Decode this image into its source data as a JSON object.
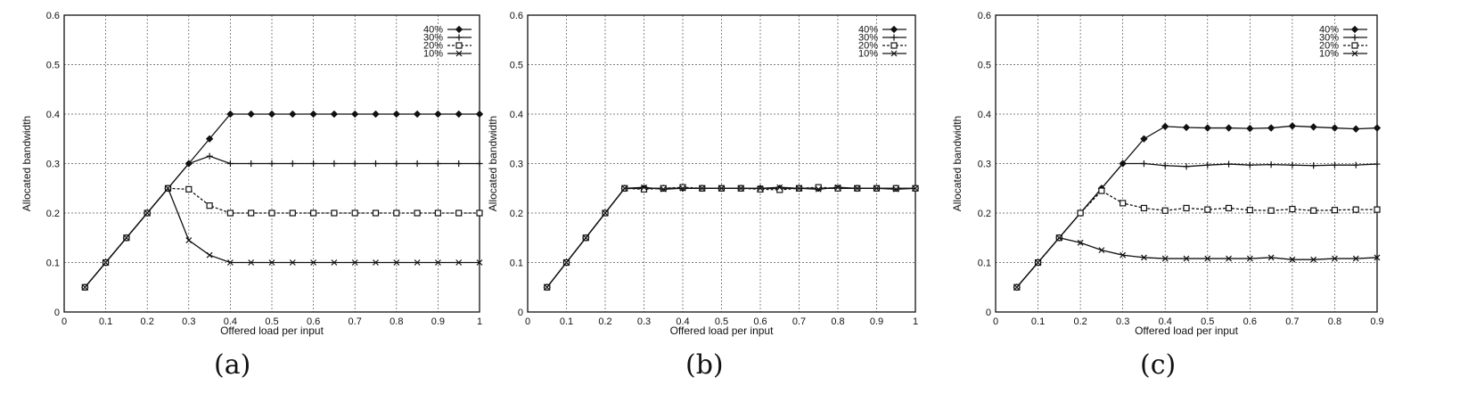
{
  "chart_data": [
    {
      "type": "line",
      "panel_label": "(a)",
      "xlabel": "Offered load per input",
      "ylabel": "Allocated bandwidth",
      "xlim": [
        0,
        1
      ],
      "ylim": [
        0,
        0.6
      ],
      "xticks": [
        "0",
        "0.1",
        "0.2",
        "0.3",
        "0.4",
        "0.5",
        "0.6",
        "0.7",
        "0.8",
        "0.9",
        "1"
      ],
      "yticks": [
        "0",
        "0.1",
        "0.2",
        "0.3",
        "0.4",
        "0.5",
        "0.6"
      ],
      "grid": true,
      "legend_position": "top-right",
      "x": [
        0.05,
        0.1,
        0.15,
        0.2,
        0.25,
        0.3,
        0.35,
        0.4,
        0.45,
        0.5,
        0.55,
        0.6,
        0.65,
        0.7,
        0.75,
        0.8,
        0.85,
        0.9,
        0.95,
        1.0
      ],
      "series": [
        {
          "name": "40%",
          "marker": "diamond",
          "dash": "solid",
          "values": [
            0.05,
            0.1,
            0.15,
            0.2,
            0.25,
            0.3,
            0.35,
            0.4,
            0.4,
            0.4,
            0.4,
            0.4,
            0.4,
            0.4,
            0.4,
            0.4,
            0.4,
            0.4,
            0.4,
            0.4
          ]
        },
        {
          "name": "30%",
          "marker": "plus",
          "dash": "solid",
          "values": [
            0.05,
            0.1,
            0.15,
            0.2,
            0.25,
            0.3,
            0.315,
            0.3,
            0.3,
            0.3,
            0.3,
            0.3,
            0.3,
            0.3,
            0.3,
            0.3,
            0.3,
            0.3,
            0.3,
            0.3
          ]
        },
        {
          "name": "20%",
          "marker": "square",
          "dash": "dashed",
          "values": [
            0.05,
            0.1,
            0.15,
            0.2,
            0.25,
            0.248,
            0.215,
            0.2,
            0.2,
            0.2,
            0.2,
            0.2,
            0.2,
            0.2,
            0.2,
            0.2,
            0.2,
            0.2,
            0.2,
            0.2
          ]
        },
        {
          "name": "10%",
          "marker": "x",
          "dash": "solid",
          "values": [
            0.05,
            0.1,
            0.15,
            0.2,
            0.25,
            0.145,
            0.115,
            0.1,
            0.1,
            0.1,
            0.1,
            0.1,
            0.1,
            0.1,
            0.1,
            0.1,
            0.1,
            0.1,
            0.1,
            0.1
          ]
        }
      ]
    },
    {
      "type": "line",
      "panel_label": "(b)",
      "xlabel": "Offered load per input",
      "ylabel": "Allocated bandwidth",
      "xlim": [
        0,
        1
      ],
      "ylim": [
        0,
        0.6
      ],
      "xticks": [
        "0",
        "0.1",
        "0.2",
        "0.3",
        "0.4",
        "0.5",
        "0.6",
        "0.7",
        "0.8",
        "0.9",
        "1"
      ],
      "yticks": [
        "0",
        "0.1",
        "0.2",
        "0.3",
        "0.4",
        "0.5",
        "0.6"
      ],
      "grid": true,
      "legend_position": "top-right",
      "x": [
        0.05,
        0.1,
        0.15,
        0.2,
        0.25,
        0.3,
        0.35,
        0.4,
        0.45,
        0.5,
        0.55,
        0.6,
        0.65,
        0.7,
        0.75,
        0.8,
        0.85,
        0.9,
        0.95,
        1.0
      ],
      "series": [
        {
          "name": "40%",
          "marker": "diamond",
          "dash": "solid",
          "values": [
            0.05,
            0.1,
            0.15,
            0.2,
            0.25,
            0.25,
            0.25,
            0.25,
            0.25,
            0.25,
            0.25,
            0.25,
            0.25,
            0.25,
            0.25,
            0.25,
            0.25,
            0.25,
            0.25,
            0.25
          ]
        },
        {
          "name": "30%",
          "marker": "plus",
          "dash": "solid",
          "values": [
            0.05,
            0.1,
            0.15,
            0.2,
            0.25,
            0.25,
            0.25,
            0.25,
            0.25,
            0.25,
            0.25,
            0.25,
            0.25,
            0.25,
            0.25,
            0.25,
            0.25,
            0.25,
            0.25,
            0.25
          ]
        },
        {
          "name": "20%",
          "marker": "square",
          "dash": "dashed",
          "values": [
            0.05,
            0.1,
            0.15,
            0.2,
            0.25,
            0.248,
            0.25,
            0.252,
            0.25,
            0.25,
            0.25,
            0.248,
            0.247,
            0.25,
            0.252,
            0.25,
            0.25,
            0.25,
            0.25,
            0.25
          ]
        },
        {
          "name": "10%",
          "marker": "x",
          "dash": "solid",
          "values": [
            0.05,
            0.1,
            0.15,
            0.2,
            0.25,
            0.252,
            0.248,
            0.25,
            0.25,
            0.25,
            0.25,
            0.25,
            0.252,
            0.25,
            0.248,
            0.252,
            0.25,
            0.25,
            0.248,
            0.25
          ]
        }
      ]
    },
    {
      "type": "line",
      "panel_label": "(c)",
      "xlabel": "Offered load per input",
      "ylabel": "Allocated bandwidth",
      "xlim": [
        0,
        0.9
      ],
      "ylim": [
        0,
        0.6
      ],
      "xticks": [
        "0",
        "0.1",
        "0.2",
        "0.3",
        "0.4",
        "0.5",
        "0.6",
        "0.7",
        "0.8",
        "0.9"
      ],
      "yticks": [
        "0",
        "0.1",
        "0.2",
        "0.3",
        "0.4",
        "0.5",
        "0.6"
      ],
      "grid": true,
      "legend_position": "top-right",
      "x": [
        0.05,
        0.1,
        0.15,
        0.2,
        0.25,
        0.3,
        0.35,
        0.4,
        0.45,
        0.5,
        0.55,
        0.6,
        0.65,
        0.7,
        0.75,
        0.8,
        0.85,
        0.9
      ],
      "series": [
        {
          "name": "40%",
          "marker": "diamond",
          "dash": "solid",
          "values": [
            0.05,
            0.1,
            0.15,
            0.2,
            0.25,
            0.3,
            0.35,
            0.375,
            0.373,
            0.372,
            0.372,
            0.371,
            0.372,
            0.376,
            0.374,
            0.372,
            0.37,
            0.372
          ]
        },
        {
          "name": "30%",
          "marker": "plus",
          "dash": "solid",
          "values": [
            0.05,
            0.1,
            0.15,
            0.2,
            0.25,
            0.3,
            0.3,
            0.296,
            0.294,
            0.297,
            0.299,
            0.297,
            0.298,
            0.297,
            0.296,
            0.297,
            0.297,
            0.299
          ]
        },
        {
          "name": "20%",
          "marker": "square",
          "dash": "dashed",
          "values": [
            0.05,
            0.1,
            0.15,
            0.2,
            0.245,
            0.22,
            0.21,
            0.205,
            0.21,
            0.207,
            0.21,
            0.206,
            0.205,
            0.208,
            0.205,
            0.206,
            0.207,
            0.207
          ]
        },
        {
          "name": "10%",
          "marker": "x",
          "dash": "solid",
          "values": [
            0.05,
            0.1,
            0.15,
            0.14,
            0.125,
            0.115,
            0.11,
            0.108,
            0.108,
            0.108,
            0.108,
            0.108,
            0.11,
            0.106,
            0.106,
            0.108,
            0.108,
            0.11
          ]
        }
      ]
    }
  ]
}
